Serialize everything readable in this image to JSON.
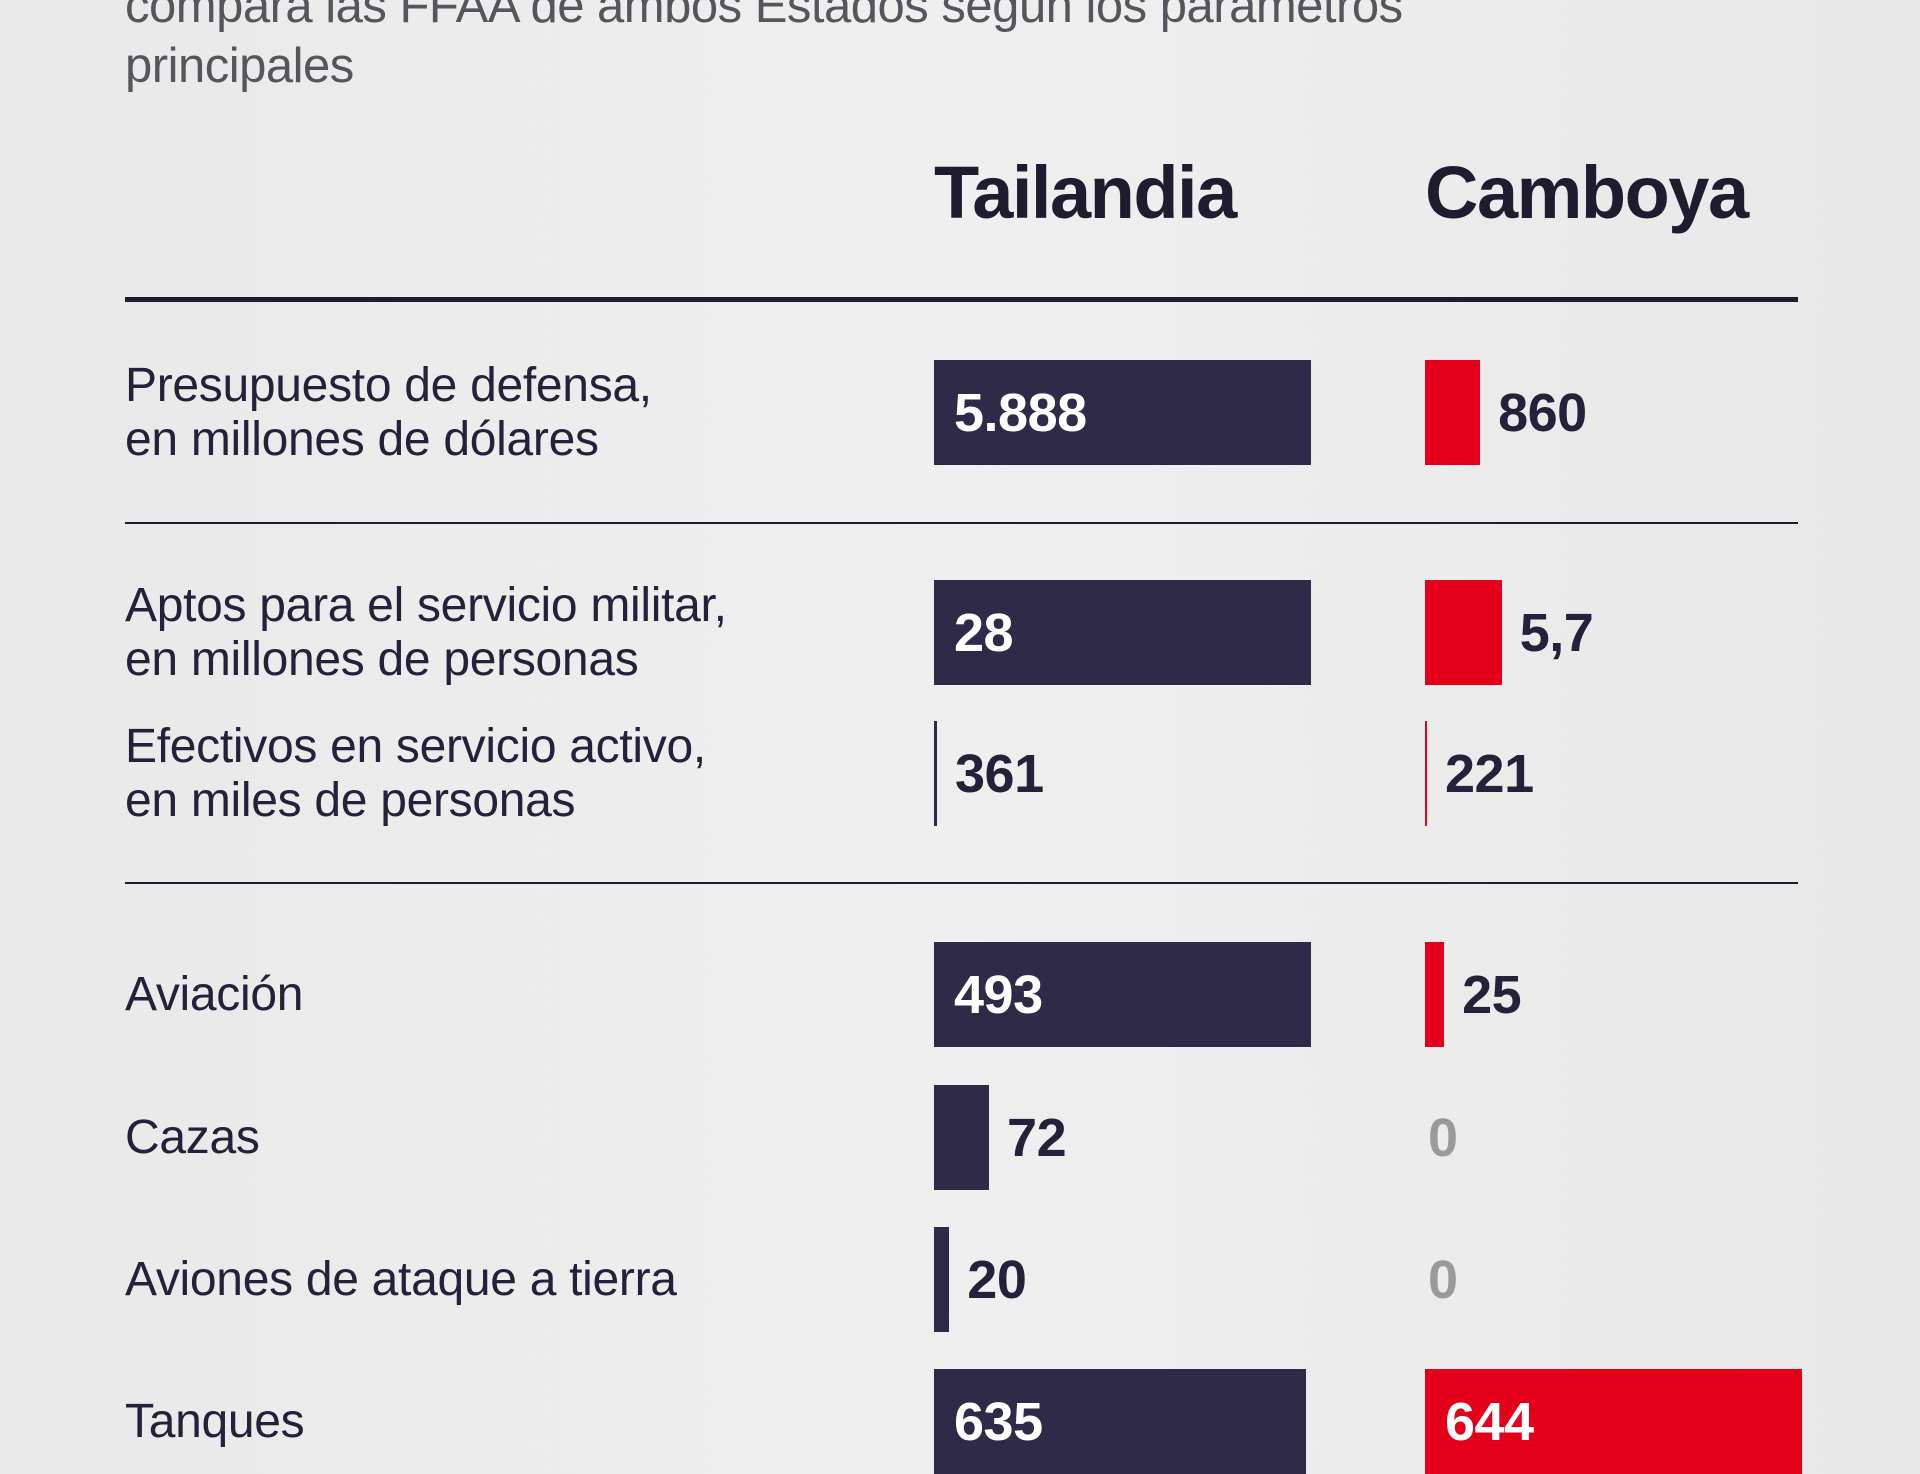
{
  "subtitle": [
    "compara las FFAA de ambos Estados según los parámetros",
    "principales"
  ],
  "colors": {
    "thailand": "#2e2a48",
    "cambodia": "#e2001a",
    "zero": "#9a9a9a",
    "text": "#23223a"
  },
  "chart_data": {
    "type": "bar",
    "orientation": "horizontal",
    "series": [
      {
        "name": "Tailandia"
      },
      {
        "name": "Camboya"
      }
    ],
    "rows": [
      {
        "label": [
          "Presupuesto de defensa,",
          "en millones de dólares"
        ],
        "group": "budget",
        "style": "bar",
        "tailandia": 5888,
        "tailandia_label": "5.888",
        "camboya": 860,
        "camboya_label": "860"
      },
      {
        "label": [
          "Aptos para el servicio militar,",
          "en millones de personas"
        ],
        "group": "fit",
        "style": "bar",
        "tailandia": 28,
        "tailandia_label": "28",
        "camboya": 5.7,
        "camboya_label": "5,7"
      },
      {
        "label": [
          "Efectivos en servicio activo,",
          "en miles de personas"
        ],
        "group": "active",
        "style": "line",
        "tailandia": 361,
        "tailandia_label": "361",
        "camboya": 221,
        "camboya_label": "221"
      },
      {
        "label": [
          "Aviación"
        ],
        "group": "air",
        "style": "bar",
        "tailandia": 493,
        "tailandia_label": "493",
        "camboya": 25,
        "camboya_label": "25"
      },
      {
        "label": [
          "Cazas"
        ],
        "group": "air",
        "style": "bar",
        "tailandia": 72,
        "tailandia_label": "72",
        "camboya": 0,
        "camboya_label": "0"
      },
      {
        "label": [
          "Aviones de ataque a tierra"
        ],
        "group": "air",
        "style": "bar",
        "tailandia": 20,
        "tailandia_label": "20",
        "camboya": 0,
        "camboya_label": "0"
      },
      {
        "label": [
          "Tanques"
        ],
        "group": "tanks",
        "style": "bar",
        "tailandia": 635,
        "tailandia_label": "635",
        "camboya": 644,
        "camboya_label": "644"
      }
    ]
  }
}
